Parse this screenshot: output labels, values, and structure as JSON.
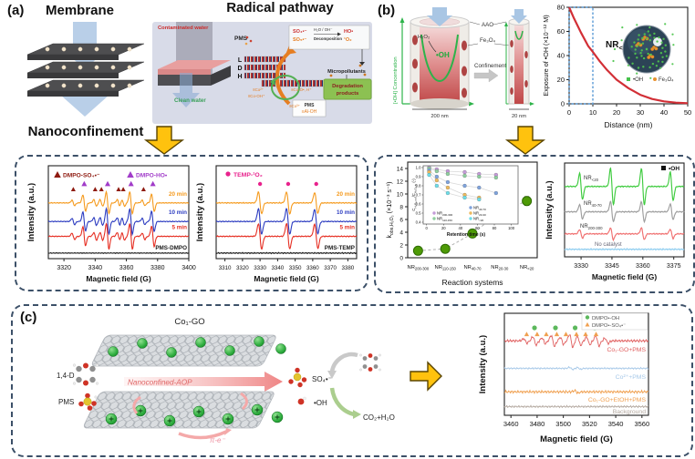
{
  "colors": {
    "arrow_yellow": "#ffc20e",
    "dashed_border": "#3c5068",
    "degradation_green": "#8cc152"
  },
  "panel_a": {
    "tag": "(a)",
    "membrane_title": "Membrane",
    "nanoconfinement": "Nanoconfinement",
    "radical_title": "Radical pathway",
    "schematic": {
      "contaminated_water": "Contaminated water",
      "clean_water": "Clean water",
      "pms": "PMS",
      "ldh_letters": [
        "L",
        "D",
        "H"
      ],
      "rxn_left_top": "SO₄•⁻",
      "rxn_left_bottom": "SO₅•⁻",
      "rxn_mid_top": "H₂O / OH⁻",
      "rxn_mid_bottom": "Decomposition",
      "rxn_right_top": "HO•",
      "rxn_right_bottom": "¹O₂",
      "micropollutants": "Micropollutants",
      "degradation_1": "Degradation",
      "degradation_2": "products",
      "pms_box_line1": "PMS",
      "pms_box_line2": "≡Al-OH",
      "cycle_left_top": "≡Co²⁺",
      "cycle_left_bottom": "≡Co-OH⁺",
      "cycle_right_top": "≡Co-O•, H⁺",
      "cycle_right_bottom": "≡Co³⁺"
    }
  },
  "panel_b": {
    "tag": "(b)",
    "schematic": {
      "conc_axis": "[•OH] Concentration",
      "h2o2": "H₂O₂",
      "oh": "•OH",
      "aao": "AAO",
      "fe3o4": "Fe₃O₄",
      "confinement": "Confinement",
      "scale_large": "200 nm",
      "scale_small": "20 nm"
    }
  },
  "panel_c": {
    "tag": "(c)",
    "title": "Co₁-GO",
    "dioxane": "1,4-D",
    "pms": "PMS",
    "nanoconfined_aop": "Nanoconfined-AOP",
    "pi_e": "π-e⁻",
    "so4": "SO₄•⁻",
    "oh": "•OH",
    "co2_h2o": "CO₂+H₂O"
  },
  "chart_data": [
    {
      "id": "a-epr-dmpo",
      "type": "line",
      "xlabel": "Magnetic field (G)",
      "ylabel": "Intensity (a.u.)",
      "xlim": [
        3310,
        3400
      ],
      "xticks": [
        3320,
        3340,
        3360,
        3380,
        3400
      ],
      "peak_width": 1.2,
      "peaks": [
        [
          3333,
          0.75
        ],
        [
          3348,
          1
        ],
        [
          3363,
          1
        ],
        [
          3377,
          0.8
        ],
        [
          3326,
          0.25
        ],
        [
          3340,
          0.3
        ],
        [
          3344,
          0.3
        ],
        [
          3355,
          0.3
        ],
        [
          3358,
          0.3
        ],
        [
          3371,
          0.25
        ]
      ],
      "legend": [
        {
          "label": "DMPO-SO₄•⁻",
          "color": "#8e1a10",
          "marker": "triangle"
        },
        {
          "label": "DMPO-HO•",
          "color": "#a13cc9",
          "marker": "triangle"
        }
      ],
      "marker_rows": [
        {
          "shape": "triangle",
          "color": "#a13cc9",
          "positions": [
            3333,
            3348,
            3363,
            3377
          ]
        },
        {
          "shape": "triangle",
          "color": "#8e1a10",
          "positions": [
            3326,
            3340,
            3344,
            3355,
            3358,
            3371
          ]
        }
      ],
      "series": [
        {
          "name": "20 min",
          "color": "#f59a1d",
          "base": 0.4,
          "amp": 12,
          "noise": 0.5
        },
        {
          "name": "10 min",
          "color": "#2b3bc0",
          "base": 0.6,
          "amp": 14,
          "noise": 0.5
        },
        {
          "name": "5 min",
          "color": "#e62e22",
          "base": 0.76,
          "amp": 14,
          "noise": 0.5
        },
        {
          "name": "PMS-DMPO",
          "color": "#1b1b1b",
          "base": 0.94,
          "amp": 0,
          "noise": 0.45,
          "flat": true
        }
      ]
    },
    {
      "id": "a-epr-temp",
      "type": "line",
      "xlabel": "Magnetic field (G)",
      "ylabel": "Intensity (a.u.)",
      "xlim": [
        3305,
        3385
      ],
      "xticks": [
        3310,
        3320,
        3330,
        3340,
        3350,
        3360,
        3370,
        3380
      ],
      "peak_width": 1.3,
      "peaks": [
        [
          3330,
          1
        ],
        [
          3346,
          1
        ],
        [
          3362,
          0.95
        ]
      ],
      "legend": [
        {
          "label": "TEMP-¹O₂",
          "color": "#e8218c",
          "marker": "dot"
        }
      ],
      "marker_rows": [
        {
          "shape": "dot",
          "color": "#e8218c",
          "positions": [
            3330,
            3346,
            3362
          ]
        }
      ],
      "series": [
        {
          "name": "20 min",
          "color": "#f59a1d",
          "base": 0.4,
          "amp": 12,
          "noise": 0.6
        },
        {
          "name": "10 min",
          "color": "#2b3bc0",
          "base": 0.6,
          "amp": 14,
          "noise": 0.6
        },
        {
          "name": "5 min",
          "color": "#e62e22",
          "base": 0.76,
          "amp": 14,
          "noise": 0.6
        },
        {
          "name": "PMS-TEMP",
          "color": "#1b1b1b",
          "base": 0.94,
          "amp": 0,
          "noise": 0.7,
          "flat": true
        }
      ]
    },
    {
      "id": "b-decay",
      "type": "line",
      "xlabel": "Distance (nm)",
      "ylabel": "Exposure of •OH (×10⁻¹² M)",
      "xlim": [
        0,
        50
      ],
      "ylim": [
        0,
        80
      ],
      "xticks": [
        0,
        10,
        20,
        30,
        40,
        50
      ],
      "yticks": [
        0,
        20,
        40,
        60,
        80
      ],
      "line_color": "#d22f36",
      "points": [
        [
          0,
          80
        ],
        [
          2,
          71
        ],
        [
          5,
          59
        ],
        [
          8,
          48
        ],
        [
          10,
          43
        ],
        [
          13,
          35
        ],
        [
          16,
          28
        ],
        [
          20,
          20
        ],
        [
          25,
          13
        ],
        [
          30,
          7.5
        ],
        [
          35,
          4
        ],
        [
          40,
          2
        ],
        [
          45,
          1
        ],
        [
          50,
          0.5
        ]
      ],
      "dashed_box": {
        "x0": 0,
        "x1": 10,
        "color": "#5b9bd5"
      },
      "annotation": {
        "main": "NR",
        "sub": "<20"
      },
      "inset_legend": [
        {
          "label": "•OH",
          "color": "#46c24b"
        },
        {
          "label": "Fe₃O₄",
          "color": "#e8922e"
        }
      ]
    },
    {
      "id": "b-kobs",
      "type": "scatter",
      "xlabel": "Reaction systems",
      "ylabel_parts": [
        {
          "t": "k"
        },
        {
          "t": "obs,H₂O₂",
          "sub": true
        },
        {
          "t": " (×10⁻³ s⁻¹)"
        }
      ],
      "ylim": [
        0,
        15
      ],
      "yticks": [
        0,
        2,
        4,
        6,
        8,
        10,
        12,
        14
      ],
      "categories": [
        {
          "main": "NR",
          "sub": "200-300"
        },
        {
          "main": "NR",
          "sub": "110-150"
        },
        {
          "main": "NR",
          "sub": "40-70"
        },
        {
          "main": "NR",
          "sub": "20-30"
        },
        {
          "main": "NR",
          "sub": "<20"
        }
      ],
      "values": [
        1.1,
        1.4,
        3.8,
        7.1,
        8.9
      ],
      "errors": [
        0.4,
        0.4,
        0.5,
        0.6,
        0.7
      ],
      "point_color": "#4e9a06",
      "inset": {
        "xlabel": "Retention time (s)",
        "ylabel_parts": [
          {
            "t": "C"
          },
          {
            "t": "H₂O₂,out",
            "sub": true
          },
          {
            "t": "/C"
          },
          {
            "t": "H₂O₂,in",
            "sub": true
          },
          {
            "t": " (-)"
          }
        ],
        "xlim": [
          0,
          100
        ],
        "ylim": [
          0.4,
          1.0
        ],
        "xticks": [
          0,
          20,
          40,
          60,
          80,
          100
        ],
        "yticks": [
          0.4,
          0.5,
          0.6,
          0.7,
          0.8,
          0.9,
          1.0
        ],
        "series": [
          {
            "main": "NR",
            "sub": "200-300",
            "color": "#c49bd8",
            "pts": [
              [
                3,
                1.0
              ],
              [
                12,
                0.98
              ],
              [
                25,
                0.96
              ],
              [
                45,
                0.95
              ],
              [
                62,
                0.93
              ],
              [
                82,
                0.92
              ]
            ]
          },
          {
            "main": "NR",
            "sub": "110-150",
            "color": "#8fcf9f",
            "pts": [
              [
                3,
                0.99
              ],
              [
                12,
                0.96
              ],
              [
                25,
                0.93
              ],
              [
                45,
                0.91
              ],
              [
                62,
                0.9
              ],
              [
                82,
                0.89
              ]
            ]
          },
          {
            "main": "NR",
            "sub": "40-70",
            "color": "#7fa3dc",
            "pts": [
              [
                3,
                0.97
              ],
              [
                12,
                0.9
              ],
              [
                25,
                0.84
              ],
              [
                45,
                0.8
              ],
              [
                62,
                0.78
              ],
              [
                82,
                0.72
              ]
            ]
          },
          {
            "main": "NR",
            "sub": "20-30",
            "color": "#edb95e",
            "pts": [
              [
                3,
                0.95
              ],
              [
                12,
                0.86
              ],
              [
                25,
                0.78
              ],
              [
                45,
                0.7
              ],
              [
                62,
                0.67
              ]
            ]
          },
          {
            "main": "NR",
            "sub": "<20",
            "color": "#6fdde8",
            "pts": [
              [
                3,
                0.92
              ],
              [
                12,
                0.8
              ],
              [
                25,
                0.72
              ],
              [
                45,
                0.67
              ],
              [
                62,
                0.65
              ]
            ]
          }
        ]
      }
    },
    {
      "id": "b-epr-oh",
      "type": "line",
      "xlabel": "Magnetic field (G)",
      "ylabel": "Intensity (a.u.)",
      "xlim": [
        3322,
        3380
      ],
      "xticks": [
        3330,
        3345,
        3360,
        3375
      ],
      "peak_width": 1.0,
      "peaks": [
        [
          3330,
          0.72
        ],
        [
          3345,
          1
        ],
        [
          3360,
          1
        ],
        [
          3374,
          0.78
        ]
      ],
      "legend": [
        {
          "label": "•OH",
          "color": "#111111",
          "marker": "square"
        }
      ],
      "series": [
        {
          "main": "NR",
          "sub": "<20",
          "color": "#3ecb3e",
          "base": 0.25,
          "amp": 20,
          "noise": 0.7
        },
        {
          "main": "NR",
          "sub": "40-70",
          "color": "#9e9e9e",
          "base": 0.52,
          "amp": 11,
          "noise": 0.7
        },
        {
          "main": "NR",
          "sub": "200-300",
          "color": "#f07070",
          "base": 0.755,
          "amp": 6.5,
          "noise": 0.7
        },
        {
          "main": "No catalyst",
          "sub": "",
          "color": "#8ecdf0",
          "base": 0.92,
          "amp": 0,
          "noise": 0.8
        }
      ]
    },
    {
      "id": "c-epr",
      "type": "line",
      "xlabel": "Magnetic field (G)",
      "ylabel": "Intensity (a.u.)",
      "xlim": [
        3455,
        3565
      ],
      "xticks": [
        3460,
        3480,
        3500,
        3520,
        3540,
        3560
      ],
      "peak_width": 1.8,
      "legend": [
        {
          "label": "DMPO•-OH",
          "color": "#5cb85c",
          "marker": "dot"
        },
        {
          "label": "DMPO•-SO₄•⁻",
          "color": "#f0a050",
          "marker": "triangle"
        }
      ],
      "marker_rows": [
        {
          "shape": "dot",
          "color": "#5cb85c",
          "positions": [
            3478,
            3494,
            3509,
            3524
          ]
        },
        {
          "shape": "triangle",
          "color": "#f0a050",
          "positions": [
            3472,
            3480,
            3487,
            3495,
            3502,
            3510,
            3517,
            3525
          ]
        }
      ],
      "series": [
        {
          "name": "Co₁-GO+PMS",
          "color": "#e05f5f",
          "base": 0.27,
          "amp": 7,
          "noise": 1.6,
          "peaks": [
            [
              3471,
              0.35
            ],
            [
              3478,
              0.65
            ],
            [
              3485,
              0.45
            ],
            [
              3492,
              0.85
            ],
            [
              3499,
              0.55
            ],
            [
              3506,
              1.0
            ],
            [
              3512,
              0.7
            ],
            [
              3519,
              0.6
            ],
            [
              3526,
              0.8
            ],
            [
              3533,
              0.4
            ]
          ]
        },
        {
          "name": "Co²⁺+PMS",
          "color": "#a6c8e8",
          "base": 0.54,
          "amp": 4,
          "noise": 1.0,
          "peaks": [
            [
              3506,
              0.3
            ],
            [
              3512,
              0.25
            ]
          ]
        },
        {
          "name": "Co₁-GO+EtOH+PMS",
          "color": "#f0a050",
          "base": 0.77,
          "amp": 4,
          "noise": 1.7,
          "peaks": [
            [
              3510,
              0.35
            ]
          ]
        },
        {
          "name": "Background",
          "color": "#b3a89f",
          "base": 0.915,
          "amp": 0,
          "noise": 1.2,
          "peaks": []
        }
      ]
    }
  ]
}
